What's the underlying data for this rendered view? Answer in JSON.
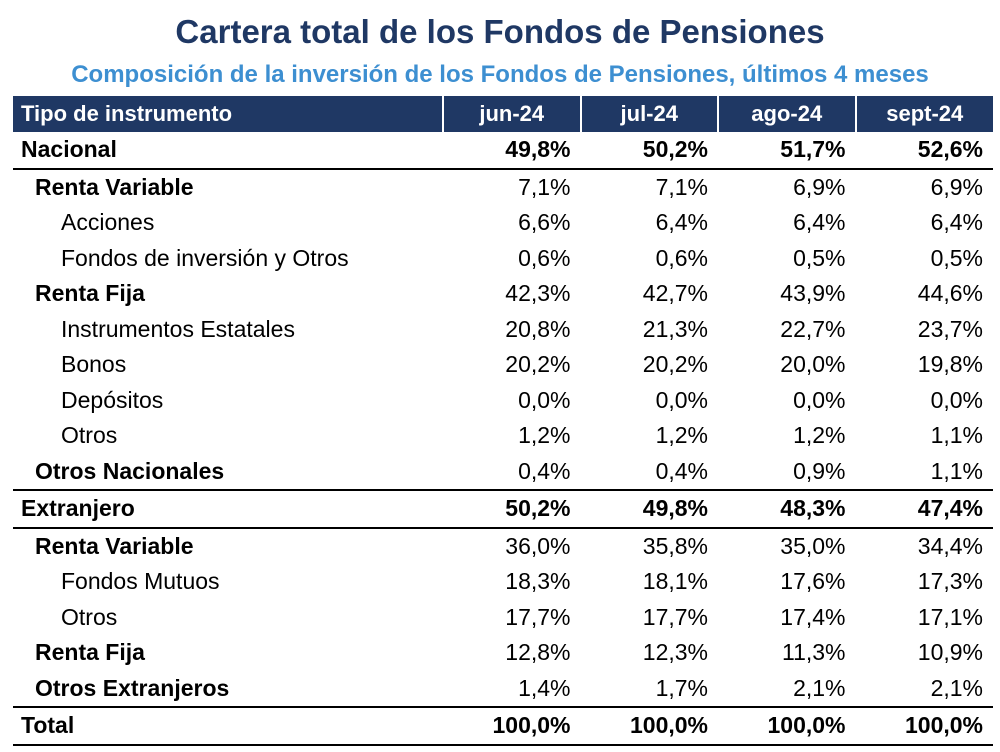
{
  "title": "Cartera total de los Fondos de Pensiones",
  "subtitle": "Composición de la inversión de los Fondos de Pensiones, últimos 4 meses",
  "table": {
    "headers": [
      "Tipo de instrumento",
      "jun-24",
      "jul-24",
      "ago-24",
      "sept-24"
    ],
    "rows": [
      {
        "label": "Nacional",
        "values": [
          "49,8%",
          "50,2%",
          "51,7%",
          "52,6%"
        ]
      },
      {
        "label": "Renta Variable",
        "values": [
          "7,1%",
          "7,1%",
          "6,9%",
          "6,9%"
        ]
      },
      {
        "label": "Acciones",
        "values": [
          "6,6%",
          "6,4%",
          "6,4%",
          "6,4%"
        ]
      },
      {
        "label": "Fondos de inversión y Otros",
        "values": [
          "0,6%",
          "0,6%",
          "0,5%",
          "0,5%"
        ]
      },
      {
        "label": "Renta Fija",
        "values": [
          "42,3%",
          "42,7%",
          "43,9%",
          "44,6%"
        ]
      },
      {
        "label": "Instrumentos Estatales",
        "values": [
          "20,8%",
          "21,3%",
          "22,7%",
          "23,7%"
        ]
      },
      {
        "label": "Bonos",
        "values": [
          "20,2%",
          "20,2%",
          "20,0%",
          "19,8%"
        ]
      },
      {
        "label": "Depósitos",
        "values": [
          "0,0%",
          "0,0%",
          "0,0%",
          "0,0%"
        ]
      },
      {
        "label": "Otros",
        "values": [
          "1,2%",
          "1,2%",
          "1,2%",
          "1,1%"
        ]
      },
      {
        "label": "Otros Nacionales",
        "values": [
          "0,4%",
          "0,4%",
          "0,9%",
          "1,1%"
        ]
      },
      {
        "label": "Extranjero",
        "values": [
          "50,2%",
          "49,8%",
          "48,3%",
          "47,4%"
        ]
      },
      {
        "label": "Renta Variable",
        "values": [
          "36,0%",
          "35,8%",
          "35,0%",
          "34,4%"
        ]
      },
      {
        "label": "Fondos Mutuos",
        "values": [
          "18,3%",
          "18,1%",
          "17,6%",
          "17,3%"
        ]
      },
      {
        "label": "Otros",
        "values": [
          "17,7%",
          "17,7%",
          "17,4%",
          "17,1%"
        ]
      },
      {
        "label": "Renta Fija",
        "values": [
          "12,8%",
          "12,3%",
          "11,3%",
          "10,9%"
        ]
      },
      {
        "label": "Otros Extranjeros",
        "values": [
          "1,4%",
          "1,7%",
          "2,1%",
          "2,1%"
        ]
      },
      {
        "label": "Total",
        "values": [
          "100,0%",
          "100,0%",
          "100,0%",
          "100,0%"
        ]
      }
    ]
  }
}
